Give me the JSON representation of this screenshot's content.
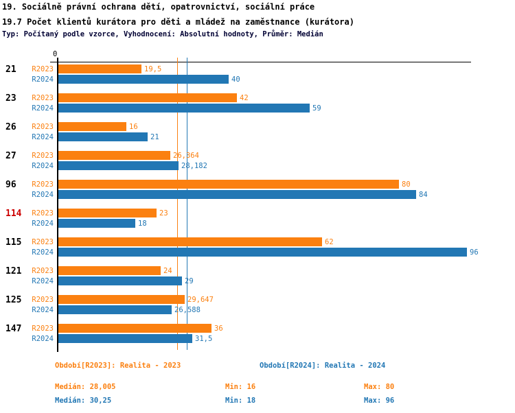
{
  "header": {
    "title_line1": "19. Sociálně právní ochrana dětí, opatrovnictví, sociální práce",
    "title_line2": "19.7 Počet klientů kurátora pro děti a mládež na zaměstnance (kurátora)",
    "subtitle": "Typ: Počítaný podle vzorce, Vyhodnocení: Absolutní hodnoty, Průměr: Medián"
  },
  "colors": {
    "series_2023": "#fb8010",
    "series_2024": "#2277b4",
    "highlight_red": "#cc0000",
    "axis": "#000000"
  },
  "chart_data": {
    "type": "bar",
    "orientation": "horizontal",
    "origin_label": "0",
    "xlim": [
      0,
      97.5
    ],
    "grid": false,
    "categories": [
      "21",
      "23",
      "26",
      "27",
      "96",
      "114",
      "115",
      "121",
      "125",
      "147"
    ],
    "highlighted_categories": [
      "114"
    ],
    "series": [
      {
        "name": "R2023",
        "color": "#fb8010",
        "values": [
          19.5,
          42,
          16,
          26.364,
          80,
          23,
          62,
          24,
          29.647,
          36
        ],
        "value_labels": [
          "19,5",
          "42",
          "16",
          "26,364",
          "80",
          "23",
          "62",
          "24",
          "29,647",
          "36"
        ],
        "median": 28.005
      },
      {
        "name": "R2024",
        "color": "#2277b4",
        "values": [
          40,
          59,
          21,
          28.182,
          84,
          18,
          96,
          29,
          26.588,
          31.5
        ],
        "value_labels": [
          "40",
          "59",
          "21",
          "28,182",
          "84",
          "18",
          "96",
          "29",
          "26,588",
          "31,5"
        ],
        "median": 30.25
      }
    ]
  },
  "footer": {
    "legends": [
      "Období[R2023]: Realita - 2023",
      "Období[R2024]: Realita - 2024"
    ],
    "stats": [
      {
        "median": "Medián: 28,005",
        "min": "Min: 16",
        "max": "Max: 80"
      },
      {
        "median": "Medián: 30,25",
        "min": "Min: 18",
        "max": "Max: 96"
      }
    ]
  }
}
